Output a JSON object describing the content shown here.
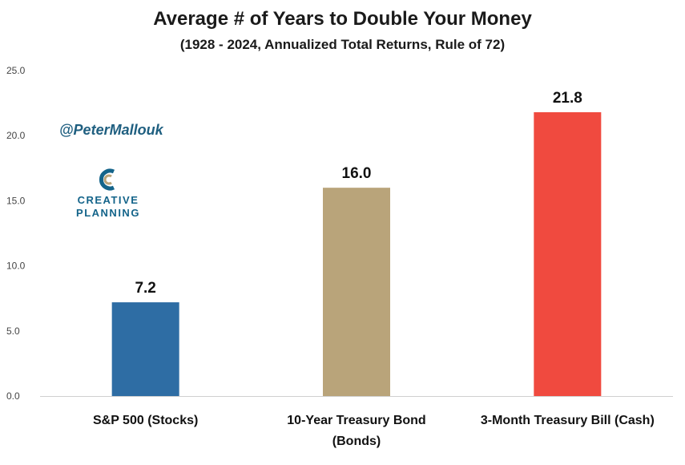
{
  "chart_data": {
    "type": "bar",
    "title": "Average # of Years to Double Your Money",
    "subtitle": "(1928 - 2024, Annualized Total Returns, Rule of 72)",
    "categories": [
      [
        "S&P 500 (Stocks)"
      ],
      [
        "10-Year Treasury Bond",
        "(Bonds)"
      ],
      [
        "3-Month Treasury Bill (Cash)"
      ]
    ],
    "values": [
      7.2,
      16.0,
      21.8
    ],
    "data_labels": [
      "7.2",
      "16.0",
      "21.8"
    ],
    "colors": [
      "#2e6da4",
      "#b9a47a",
      "#f04a3f"
    ],
    "ylim": [
      0,
      25
    ],
    "yticks": [
      "0.0",
      "5.0",
      "10.0",
      "15.0",
      "20.0",
      "25.0"
    ],
    "grid": false,
    "legend": "none"
  },
  "branding": {
    "handle": "@PeterMallouk",
    "logo_line1": "CREATIVE",
    "logo_line2": "PLANNING",
    "logo_icon": "creative-planning-logo-icon"
  }
}
